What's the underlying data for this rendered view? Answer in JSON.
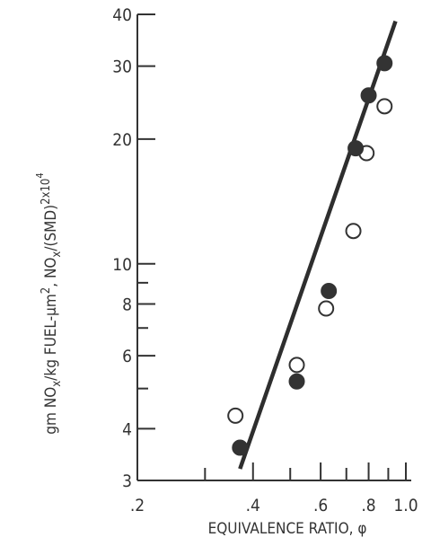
{
  "chart_data": {
    "type": "scatter",
    "x_scale": "log",
    "y_scale": "log",
    "xlabel": "EQUIVALENCE RATIO, φ",
    "ylabel": "gm NO",
    "ylabel_sub1": "x",
    "ylabel_mid": "/kg FUEL-μm",
    "ylabel_sup1": "2",
    "ylabel_mid2": ", NO",
    "ylabel_sub2": "x",
    "ylabel_mid3": "/(SMD)",
    "ylabel_sup2": "2",
    "ylabel_mid4": "x10",
    "ylabel_sup3": "4",
    "xlim": [
      0.2,
      1.0
    ],
    "ylim": [
      3,
      40
    ],
    "x_ticks": [
      {
        "value": 0.2,
        "label": ".2"
      },
      {
        "value": 0.3,
        "label": ""
      },
      {
        "value": 0.4,
        "label": ".4"
      },
      {
        "value": 0.5,
        "label": ""
      },
      {
        "value": 0.6,
        "label": ".6"
      },
      {
        "value": 0.7,
        "label": ""
      },
      {
        "value": 0.8,
        "label": ".8"
      },
      {
        "value": 0.9,
        "label": ""
      },
      {
        "value": 1.0,
        "label": "1.0"
      }
    ],
    "y_ticks": [
      {
        "value": 3,
        "label": "3"
      },
      {
        "value": 4,
        "label": "4"
      },
      {
        "value": 5,
        "label": ""
      },
      {
        "value": 6,
        "label": "6"
      },
      {
        "value": 7,
        "label": ""
      },
      {
        "value": 8,
        "label": "8"
      },
      {
        "value": 9,
        "label": ""
      },
      {
        "value": 10,
        "label": "10"
      },
      {
        "value": 20,
        "label": "20"
      },
      {
        "value": 30,
        "label": "30"
      },
      {
        "value": 40,
        "label": "40"
      }
    ],
    "series": [
      {
        "marker": "open-circle",
        "points": [
          {
            "x": 0.36,
            "y": 4.3
          },
          {
            "x": 0.52,
            "y": 5.7
          },
          {
            "x": 0.62,
            "y": 7.8
          },
          {
            "x": 0.73,
            "y": 12.0
          },
          {
            "x": 0.79,
            "y": 18.5
          },
          {
            "x": 0.88,
            "y": 24.0
          }
        ]
      },
      {
        "marker": "filled-circle",
        "points": [
          {
            "x": 0.37,
            "y": 3.6
          },
          {
            "x": 0.52,
            "y": 5.2
          },
          {
            "x": 0.63,
            "y": 8.6
          },
          {
            "x": 0.74,
            "y": 19.0
          },
          {
            "x": 0.8,
            "y": 25.5
          },
          {
            "x": 0.88,
            "y": 30.5
          }
        ]
      }
    ],
    "fit_line": {
      "x": [
        0.37,
        0.94
      ],
      "y": [
        3.2,
        38.5
      ]
    },
    "colors": {
      "ink": "#333333",
      "line": "#2e2e2e",
      "background": "#ffffff"
    }
  }
}
